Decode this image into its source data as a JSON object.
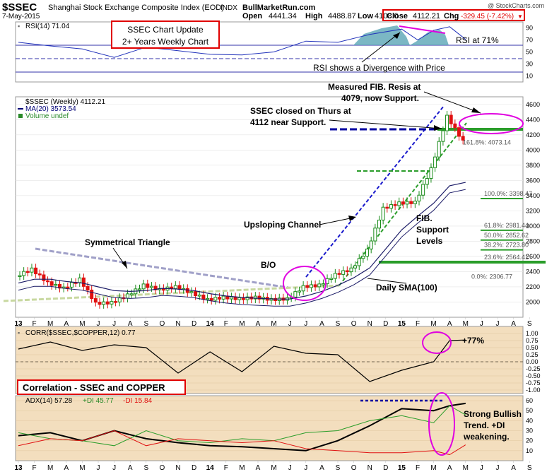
{
  "header": {
    "symbol": "$SSEC",
    "name": "Shanghai Stock Exchange Composite Index (EOD)",
    "exchange": "INDX",
    "date": "7-May-2015",
    "site": "BullMarketRun.com",
    "watermark": "@ StockCharts.com",
    "open_label": "Open",
    "open": "4441.34",
    "high_label": "High",
    "high": "4488.87",
    "low_label": "Low",
    "low": "4108.0",
    "close_label": "Close",
    "close": "4112.21",
    "chg_label": "Chg",
    "chg": "-329.45 (-7.42%)",
    "chg_arrow": "▼",
    "colors": {
      "up": "#1a8c1a",
      "down": "#e01010",
      "accent_red": "#e00000",
      "magenta": "#e000e0",
      "navy": "#0000a0",
      "green_line": "#2a9d2a"
    }
  },
  "rsi_panel": {
    "label": "RSI(14) 71.04",
    "levels": [
      "90",
      "70",
      "50",
      "30",
      "10"
    ],
    "callout_title_1": "SSEC Chart Update",
    "callout_title_2": "2+ Years Weekly Chart",
    "rsi_note": "RSI at 71%",
    "divergence_note": "RSI shows a Divergence with Price"
  },
  "price_panel": {
    "legend_main": "$SSEC (Weekly) 4112.21",
    "legend_ma": "MA(20) 3573.54",
    "legend_vol": "Volume undef",
    "y_ticks": [
      "4600",
      "4400",
      "4200",
      "4000",
      "3800",
      "3600",
      "3400",
      "3200",
      "3000",
      "2800",
      "2600",
      "2400",
      "2200",
      "2000"
    ],
    "fib_labels": [
      "161.8%: 4073.14",
      "100.0%: 3398.47",
      "61.8%: 2981.44",
      "50.0%: 2852.62",
      "38.2%: 2723.80",
      "23.6%: 2564.41",
      "0.0%: 2306.77"
    ],
    "annotations": {
      "measured_fib": "Measured FIB. Resis at\n4079, now Support.",
      "closed_thurs": "SSEC closed on Thurs at\n4112 near Support.",
      "sym_triangle": "Symmetrical Triangle",
      "breakout": "B/O",
      "channel": "Upsloping Channel",
      "fib_support": "FIB.\nSupport\nLevels",
      "daily_sma": "Daily SMA(100)"
    }
  },
  "corr_panel": {
    "label": "CORR($SSEC,$COPPER,12) 0.77",
    "y_ticks": [
      "1.00",
      "0.75",
      "0.50",
      "0.25",
      "0.00",
      "-0.25",
      "-0.50",
      "-0.75",
      "-1.00"
    ],
    "pct_note": "+77%",
    "title": "Correlation - SSEC and COPPER"
  },
  "adx_panel": {
    "label_adx": "ADX(14) 57.28",
    "label_pdi": "+DI 45.77",
    "label_mdi": "-DI 15.84",
    "y_ticks": [
      "60",
      "50",
      "40",
      "30",
      "20",
      "10"
    ],
    "note": "Strong Bullish\nTrend. +DI\nweakening."
  },
  "x_axis": [
    "13",
    "F",
    "M",
    "A",
    "M",
    "J",
    "J",
    "A",
    "S",
    "O",
    "N",
    "D",
    "14",
    "F",
    "M",
    "A",
    "M",
    "J",
    "J",
    "A",
    "S",
    "O",
    "N",
    "D",
    "15",
    "F",
    "M",
    "A",
    "M",
    "J",
    "J",
    "A",
    "S"
  ],
  "chart_data": [
    {
      "type": "line",
      "title": "RSI(14)",
      "x": [
        "2013-01",
        "2013-03",
        "2013-05",
        "2013-07",
        "2013-09",
        "2013-11",
        "2014-01",
        "2014-03",
        "2014-05",
        "2014-07",
        "2014-09",
        "2014-11",
        "2015-01",
        "2015-02",
        "2015-03",
        "2015-04",
        "2015-05"
      ],
      "series": [
        {
          "values": [
            66,
            60,
            55,
            41,
            58,
            52,
            46,
            45,
            50,
            68,
            66,
            79,
            88,
            70,
            86,
            92,
            71
          ]
        }
      ],
      "ylim": [
        0,
        100
      ]
    },
    {
      "type": "line",
      "title": "$SSEC (Weekly)",
      "x": [
        "2013-01",
        "2013-02",
        "2013-03",
        "2013-04",
        "2013-05",
        "2013-06",
        "2013-07",
        "2013-08",
        "2013-09",
        "2013-10",
        "2013-11",
        "2013-12",
        "2014-01",
        "2014-02",
        "2014-03",
        "2014-04",
        "2014-05",
        "2014-06",
        "2014-07",
        "2014-08",
        "2014-09",
        "2014-10",
        "2014-11",
        "2014-12",
        "2015-01",
        "2015-02",
        "2015-03",
        "2015-04",
        "2015-05"
      ],
      "series": [
        {
          "name": "$SSEC",
          "values": [
            2340,
            2430,
            2250,
            2180,
            2300,
            1980,
            1990,
            2090,
            2220,
            2160,
            2200,
            2120,
            2030,
            2060,
            2040,
            2060,
            2030,
            2040,
            2200,
            2220,
            2360,
            2430,
            2680,
            3230,
            3300,
            3310,
            3750,
            4440,
            4112
          ]
        },
        {
          "name": "MA(20)",
          "values": [
            2250,
            2300,
            2300,
            2270,
            2250,
            2200,
            2150,
            2140,
            2150,
            2180,
            2170,
            2150,
            2110,
            2080,
            2060,
            2050,
            2040,
            2040,
            2080,
            2140,
            2220,
            2320,
            2450,
            2700,
            2950,
            3130,
            3300,
            3530,
            3574
          ]
        }
      ],
      "ylim": [
        1800,
        4700
      ]
    },
    {
      "type": "line",
      "title": "CORR($SSEC,$COPPER,12)",
      "x": [
        "2013-01",
        "2013-03",
        "2013-05",
        "2013-07",
        "2013-09",
        "2013-11",
        "2014-01",
        "2014-03",
        "2014-05",
        "2014-07",
        "2014-09",
        "2014-11",
        "2015-01",
        "2015-03",
        "2015-04",
        "2015-05"
      ],
      "series": [
        {
          "values": [
            0.45,
            0.7,
            0.4,
            0.6,
            0.5,
            -0.4,
            0.35,
            -0.35,
            0.55,
            0.3,
            0.25,
            -0.7,
            -0.3,
            0.0,
            0.75,
            0.77
          ]
        }
      ],
      "ylim": [
        -1,
        1
      ]
    },
    {
      "type": "line",
      "title": "ADX(14)",
      "x": [
        "2013-01",
        "2013-03",
        "2013-05",
        "2013-07",
        "2013-09",
        "2013-11",
        "2014-01",
        "2014-03",
        "2014-05",
        "2014-07",
        "2014-09",
        "2014-11",
        "2015-01",
        "2015-03",
        "2015-04",
        "2015-05"
      ],
      "series": [
        {
          "name": "ADX(14)",
          "values": [
            25,
            28,
            20,
            30,
            22,
            18,
            15,
            14,
            12,
            10,
            20,
            35,
            52,
            50,
            55,
            57.28
          ]
        },
        {
          "name": "+DI",
          "values": [
            28,
            22,
            20,
            15,
            30,
            20,
            18,
            22,
            20,
            28,
            30,
            40,
            45,
            38,
            55,
            45.77
          ]
        },
        {
          "name": "-DI",
          "values": [
            15,
            22,
            20,
            30,
            15,
            22,
            20,
            18,
            20,
            12,
            10,
            8,
            8,
            10,
            6,
            15.84
          ]
        }
      ],
      "ylim": [
        0,
        65
      ]
    }
  ]
}
